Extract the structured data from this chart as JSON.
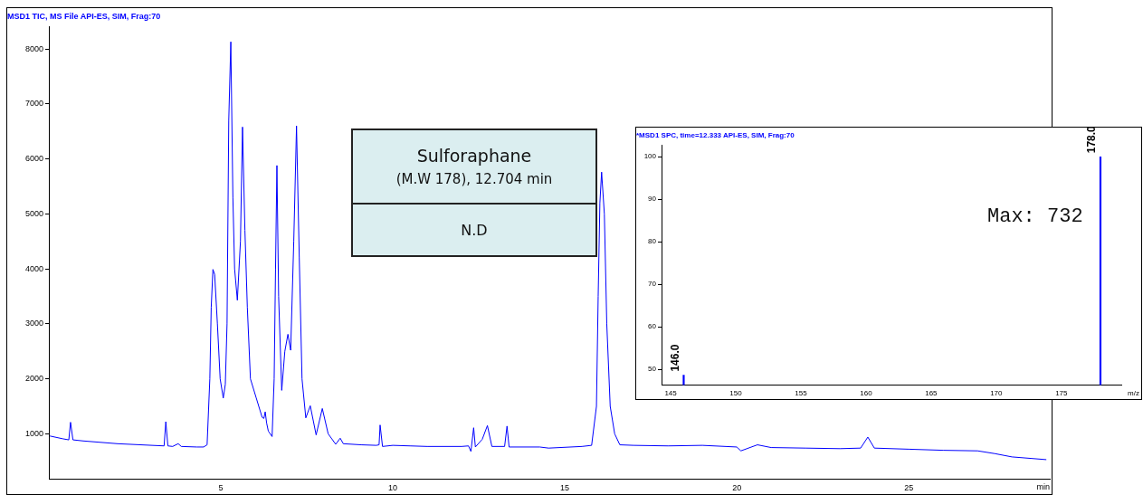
{
  "chart_data": [
    {
      "type": "line",
      "title": "MSD1 TIC, MS File API-ES, SIM, Frag:70",
      "xlabel": "min",
      "annotations": [
        "Sulforaphane",
        "(M.W 178), 12.704 min",
        "N.D"
      ],
      "xlim": [
        0,
        29.1
      ],
      "xticks": [
        5,
        10,
        15,
        20,
        25
      ],
      "ylim": [
        180,
        8400
      ],
      "yticks": [
        1000,
        2000,
        3000,
        4000,
        5000,
        6000,
        7000,
        8000
      ],
      "grid": false,
      "legend": false,
      "marker": "none",
      "line_style": "solid",
      "series": [
        {
          "color": "#0000ff",
          "x": [
            0.03,
            0.4,
            0.58,
            0.63,
            0.7,
            1,
            2,
            3,
            3.35,
            3.4,
            3.46,
            3.6,
            3.76,
            3.85,
            4.3,
            4.5,
            4.6,
            4.68,
            4.72,
            4.77,
            4.82,
            4.9,
            4.98,
            5.07,
            5.13,
            5.18,
            5.23,
            5.29,
            5.35,
            5.4,
            5.48,
            5.57,
            5.63,
            5.7,
            5.77,
            5.86,
            6.03,
            6.2,
            6.25,
            6.29,
            6.33,
            6.38,
            6.49,
            6.55,
            6.59,
            6.63,
            6.68,
            6.77,
            6.86,
            6.95,
            7.03,
            7.12,
            7.2,
            7.28,
            7.36,
            7.47,
            7.6,
            7.77,
            7.95,
            8.12,
            8.34,
            8.47,
            8.56,
            9.08,
            9.52,
            9.6,
            9.63,
            9.7,
            10,
            10.5,
            11,
            12,
            12.2,
            12.27,
            12.35,
            12.4,
            12.6,
            12.75,
            12.88,
            13.25,
            13.32,
            13.38,
            14.27,
            14.53,
            15.5,
            15.78,
            15.92,
            15.97,
            16.02,
            16.07,
            16.15,
            16.22,
            16.32,
            16.45,
            16.6,
            17,
            18,
            19,
            20,
            20.12,
            20.6,
            21,
            22,
            23,
            23.6,
            23.81,
            24,
            25,
            26,
            27,
            27.5,
            28,
            29
          ],
          "values": [
            960,
            910,
            890,
            1210,
            890,
            870,
            820,
            790,
            780,
            1220,
            780,
            770,
            820,
            770,
            760,
            760,
            800,
            2000,
            3300,
            3990,
            3900,
            3000,
            2000,
            1650,
            1900,
            3000,
            6700,
            8130,
            5300,
            4000,
            3430,
            4500,
            6580,
            4700,
            3300,
            2000,
            1650,
            1300,
            1280,
            1400,
            1200,
            1050,
            950,
            2000,
            4000,
            5880,
            3500,
            1790,
            2500,
            2810,
            2520,
            4500,
            6600,
            4200,
            2000,
            1290,
            1510,
            980,
            1460,
            1000,
            810,
            920,
            820,
            800,
            790,
            800,
            1160,
            770,
            790,
            780,
            770,
            770,
            780,
            680,
            1110,
            760,
            900,
            1150,
            770,
            770,
            1140,
            760,
            760,
            740,
            770,
            790,
            1500,
            3500,
            5200,
            5760,
            5000,
            3000,
            1500,
            1000,
            800,
            790,
            780,
            790,
            760,
            690,
            800,
            750,
            740,
            730,
            740,
            940,
            740,
            720,
            700,
            690,
            640,
            580,
            530
          ]
        }
      ]
    },
    {
      "type": "bar",
      "title": "*MSD1 SPC, time=12.333 API-ES, SIM, Frag:70",
      "xlabel": "m/z",
      "annotations": [
        {
          "text": "146.0",
          "x": 146,
          "y": 48.6
        },
        {
          "text": "178.0",
          "x": 178,
          "y": 100
        },
        "Max: 732"
      ],
      "xlim": [
        144.3,
        179.6
      ],
      "xticks": [
        145,
        150,
        155,
        160,
        165,
        170,
        175
      ],
      "ylim": [
        46.3,
        102.7
      ],
      "yticks": [
        50,
        60,
        70,
        80,
        90,
        100
      ],
      "grid": false,
      "legend": false,
      "series": [
        {
          "color": "#0000ff",
          "x": [
            146,
            178
          ],
          "values": [
            48.6,
            100
          ]
        }
      ]
    }
  ]
}
